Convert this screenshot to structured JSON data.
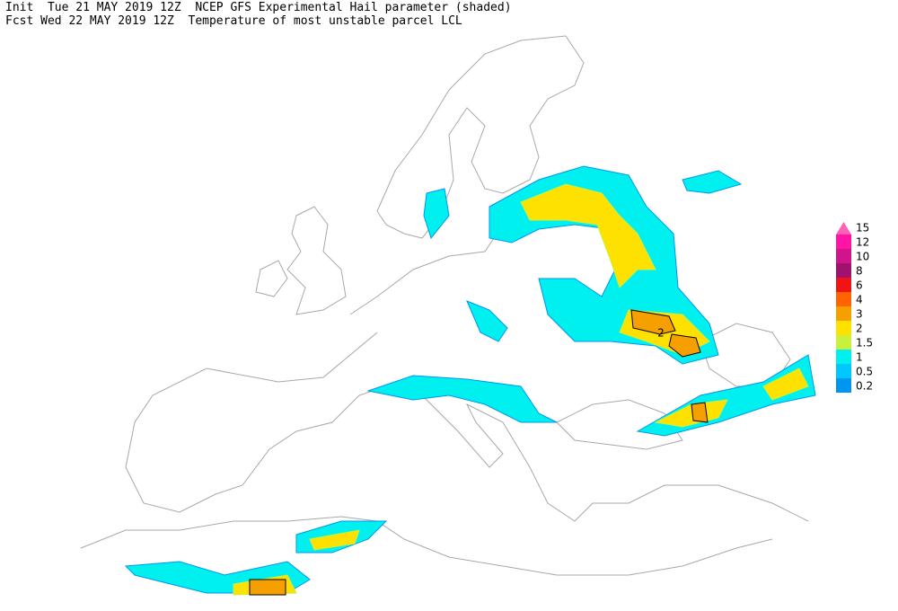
{
  "header": {
    "line1": "Init  Tue 21 MAY 2019 12Z  NCEP GFS Experimental Hail parameter (shaded)",
    "line2": "Fcst Wed 22 MAY 2019 12Z  Temperature of most unstable parcel LCL"
  },
  "contour_label": "2",
  "legend": {
    "levels": [
      {
        "value": 15,
        "color": "#ff5fb4"
      },
      {
        "value": 12,
        "color": "#ff14a5"
      },
      {
        "value": 10,
        "color": "#d2148c"
      },
      {
        "value": 8,
        "color": "#a0126e"
      },
      {
        "value": 6,
        "color": "#f01414"
      },
      {
        "value": 4,
        "color": "#ff6400"
      },
      {
        "value": 3,
        "color": "#f5a000"
      },
      {
        "value": 2,
        "color": "#ffe100"
      },
      {
        "value": 1.5,
        "color": "#c8f03c"
      },
      {
        "value": 1,
        "color": "#00f0f0"
      },
      {
        "value": 0.5,
        "color": "#00c8ff"
      },
      {
        "value": 0.2,
        "color": "#0096f0"
      }
    ]
  }
}
